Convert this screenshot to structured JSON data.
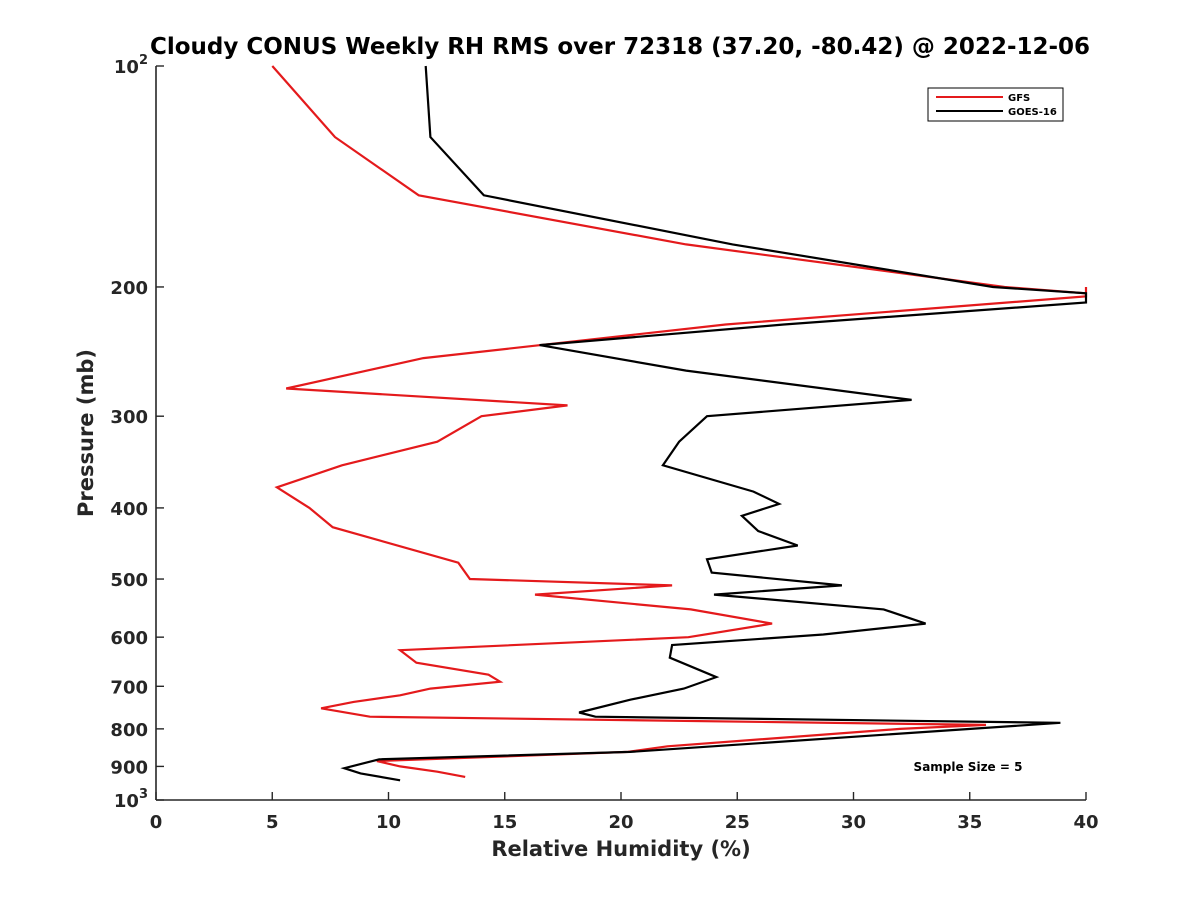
{
  "chart_data": {
    "type": "line",
    "title": "Cloudy CONUS Weekly RH RMS over 72318 (37.20, -80.42) @ 2022-12-06",
    "xlabel": "Relative Humidity (%)",
    "ylabel": "Pressure (mb)",
    "xlim": [
      0,
      40
    ],
    "ylim": [
      100,
      1000
    ],
    "yscale": "log",
    "y_reversed": true,
    "grid": false,
    "legend_position": "top-right",
    "x_ticks": [
      0,
      5,
      10,
      15,
      20,
      25,
      30,
      35,
      40
    ],
    "x_tick_labels": [
      "0",
      "5",
      "10",
      "15",
      "20",
      "25",
      "30",
      "35",
      "40"
    ],
    "y_ticks": [
      100,
      200,
      300,
      400,
      500,
      600,
      700,
      800,
      900,
      1000
    ],
    "y_tick_labels": [
      {
        "base": "10",
        "sup": "2"
      },
      {
        "base": "200"
      },
      {
        "base": "300"
      },
      {
        "base": "400"
      },
      {
        "base": "500"
      },
      {
        "base": "600"
      },
      {
        "base": "700"
      },
      {
        "base": "800"
      },
      {
        "base": "900"
      },
      {
        "base": "10",
        "sup": "3"
      }
    ],
    "series": [
      {
        "name": "GFS",
        "color": "#e41a1c",
        "points": [
          [
            5.0,
            100
          ],
          [
            7.7,
            125
          ],
          [
            11.3,
            150
          ],
          [
            22.8,
            175
          ],
          [
            36.5,
            200
          ],
          [
            40.0,
            204
          ],
          [
            40.0,
            200
          ],
          [
            40.0,
            206
          ],
          [
            24.5,
            225
          ],
          [
            11.5,
            250
          ],
          [
            5.6,
            275
          ],
          [
            17.7,
            290
          ],
          [
            14.0,
            300
          ],
          [
            12.1,
            325
          ],
          [
            8.0,
            350
          ],
          [
            5.2,
            375
          ],
          [
            6.6,
            400
          ],
          [
            7.6,
            425
          ],
          [
            13.0,
            475
          ],
          [
            13.5,
            500
          ],
          [
            22.2,
            510
          ],
          [
            16.3,
            525
          ],
          [
            23.0,
            550
          ],
          [
            26.5,
            575
          ],
          [
            22.9,
            600
          ],
          [
            10.5,
            625
          ],
          [
            11.2,
            650
          ],
          [
            14.3,
            675
          ],
          [
            14.8,
            690
          ],
          [
            11.8,
            705
          ],
          [
            10.5,
            720
          ],
          [
            8.5,
            735
          ],
          [
            7.1,
            750
          ],
          [
            9.2,
            770
          ],
          [
            35.7,
            790
          ],
          [
            32.0,
            800
          ],
          [
            22.0,
            845
          ],
          [
            20.3,
            860
          ],
          [
            9.5,
            885
          ],
          [
            10.5,
            900
          ],
          [
            12.1,
            915
          ],
          [
            13.3,
            930
          ]
        ]
      },
      {
        "name": "GOES-16",
        "color": "#000000",
        "points": [
          [
            11.6,
            100
          ],
          [
            11.8,
            125
          ],
          [
            14.1,
            150
          ],
          [
            24.8,
            175
          ],
          [
            36.0,
            200
          ],
          [
            40.0,
            204
          ],
          [
            40.0,
            210
          ],
          [
            27.0,
            225
          ],
          [
            16.5,
            240
          ],
          [
            22.8,
            260
          ],
          [
            32.5,
            285
          ],
          [
            23.7,
            300
          ],
          [
            22.5,
            325
          ],
          [
            21.8,
            350
          ],
          [
            25.7,
            380
          ],
          [
            26.8,
            395
          ],
          [
            25.2,
            410
          ],
          [
            25.9,
            430
          ],
          [
            27.6,
            450
          ],
          [
            23.7,
            470
          ],
          [
            23.9,
            490
          ],
          [
            29.5,
            510
          ],
          [
            24.0,
            525
          ],
          [
            31.3,
            550
          ],
          [
            33.1,
            575
          ],
          [
            28.7,
            595
          ],
          [
            22.2,
            615
          ],
          [
            22.1,
            640
          ],
          [
            24.1,
            680
          ],
          [
            22.7,
            705
          ],
          [
            20.4,
            730
          ],
          [
            18.2,
            760
          ],
          [
            18.9,
            770
          ],
          [
            38.9,
            785
          ],
          [
            20.4,
            860
          ],
          [
            9.6,
            880
          ],
          [
            8.1,
            905
          ],
          [
            8.8,
            920
          ],
          [
            10.5,
            940
          ]
        ]
      }
    ],
    "annotations": [
      "Sample Size = 5"
    ]
  }
}
